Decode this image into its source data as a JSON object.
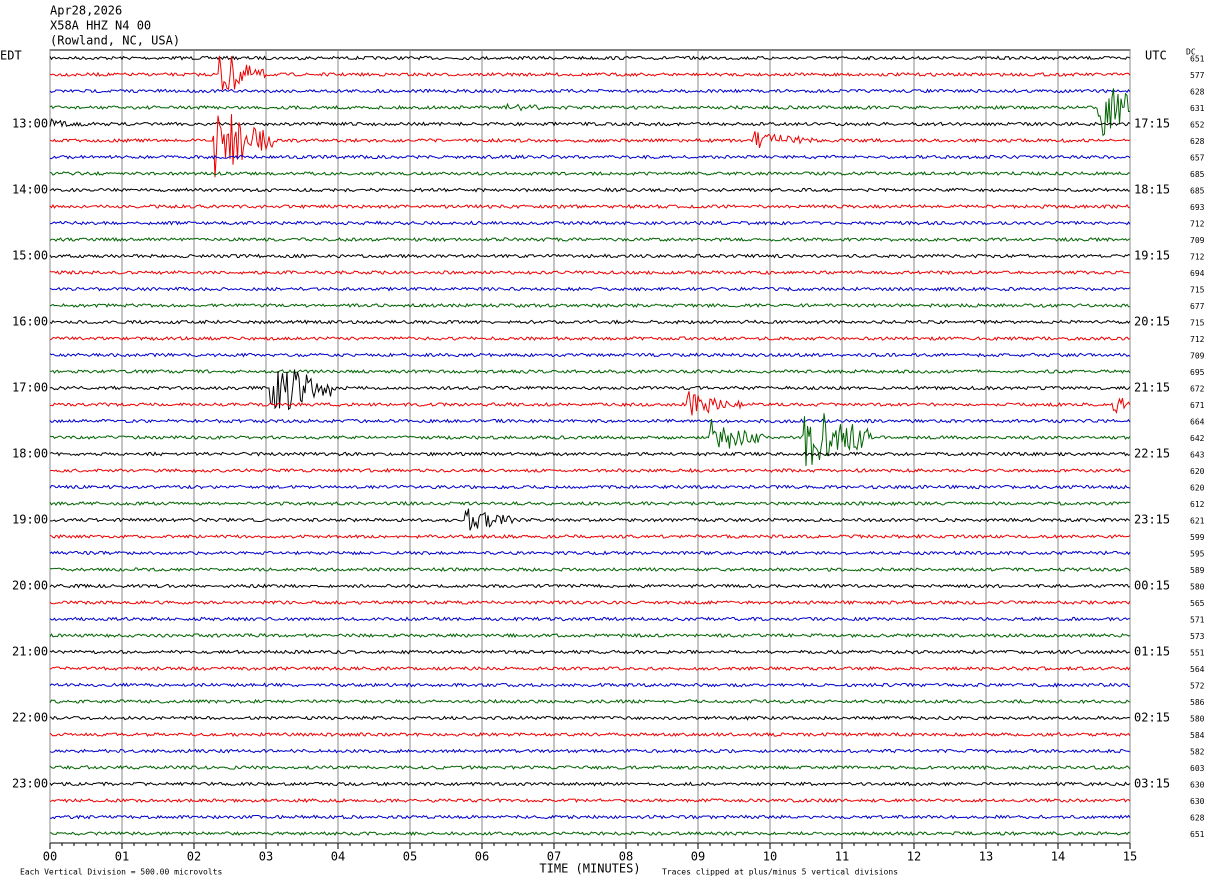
{
  "header": {
    "date": "Apr28,2026",
    "station": "X58A HHZ N4 00",
    "location": "(Rowland, NC, USA)"
  },
  "left_zone": "EDT",
  "right_zone": "UTC",
  "dc_label": "DC",
  "left_labels": [
    "13:00",
    "14:00",
    "15:00",
    "16:00",
    "17:00",
    "18:00",
    "19:00",
    "20:00",
    "21:00",
    "22:00",
    "23:00"
  ],
  "right_labels": [
    "17:15",
    "18:15",
    "19:15",
    "20:15",
    "21:15",
    "22:15",
    "23:15",
    "00:15",
    "01:15",
    "02:15",
    "03:15"
  ],
  "dc_values": [
    651,
    577,
    628,
    631,
    652,
    628,
    657,
    685,
    685,
    693,
    712,
    709,
    712,
    694,
    715,
    677,
    715,
    712,
    709,
    695,
    672,
    671,
    664,
    642,
    643,
    620,
    620,
    612,
    621,
    599,
    595,
    589,
    580,
    565,
    571,
    573,
    551,
    564,
    572,
    586,
    580,
    584,
    582,
    603,
    630,
    630,
    628,
    651
  ],
  "x_ticks": [
    "00",
    "01",
    "02",
    "03",
    "04",
    "05",
    "06",
    "07",
    "08",
    "09",
    "10",
    "11",
    "12",
    "13",
    "14",
    "15"
  ],
  "x_label": "TIME (MINUTES)",
  "footer_left": "Each Vertical Division =  500.00 microvolts",
  "footer_right": "Traces clipped at plus/minus 5 vertical divisions"
}
